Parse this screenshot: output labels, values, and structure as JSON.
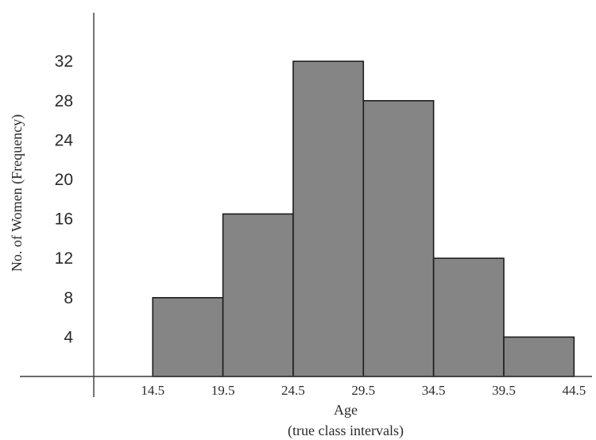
{
  "chart_data": {
    "type": "bar",
    "bins": [
      {
        "from": 14.5,
        "to": 19.5,
        "value": 8
      },
      {
        "from": 19.5,
        "to": 24.5,
        "value": 16.5
      },
      {
        "from": 24.5,
        "to": 29.5,
        "value": 32
      },
      {
        "from": 29.5,
        "to": 34.5,
        "value": 28
      },
      {
        "from": 34.5,
        "to": 39.5,
        "value": 12
      },
      {
        "from": 39.5,
        "to": 44.5,
        "value": 4
      }
    ],
    "x_ticks": [
      "14.5",
      "19.5",
      "24.5",
      "29.5",
      "34.5",
      "39.5",
      "44.5"
    ],
    "y_ticks": [
      "4",
      "8",
      "12",
      "16",
      "20",
      "24",
      "28",
      "32"
    ],
    "xlabel": "Age",
    "xlabel_sub": "(true class intervals)",
    "ylabel": "No. of Women  (Frequency)",
    "xlim": [
      10.3,
      45.5
    ],
    "ylim": [
      0,
      35
    ],
    "grid": false,
    "colors": {
      "bar_fill": "#858585",
      "bar_edge": "#1e1e1e",
      "axis": "#3a3a3a"
    }
  }
}
